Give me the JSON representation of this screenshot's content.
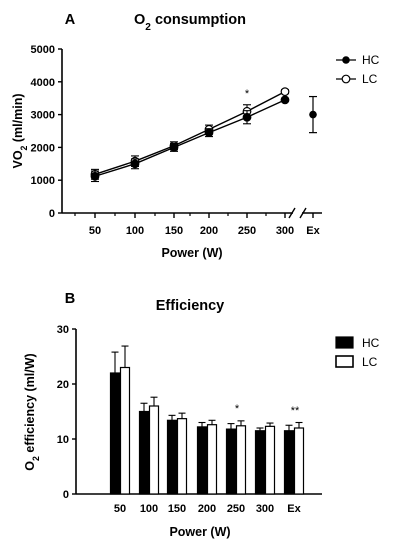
{
  "chart_data": [
    {
      "panel": "A",
      "type": "line",
      "title": "O₂ consumption",
      "title_parts": {
        "pre": "O",
        "sub": "2",
        "post": " consumption"
      },
      "ylabel_parts": {
        "pre": "VO",
        "sub": "2",
        "post": " (ml/min)"
      },
      "xlabel": "Power  (W)",
      "x": [
        "50",
        "100",
        "150",
        "200",
        "250",
        "300"
      ],
      "extra_category": "Ex",
      "ylim": [
        0,
        5000
      ],
      "yticks": [
        "0",
        "1000",
        "2000",
        "3000",
        "4000",
        "5000"
      ],
      "series": [
        {
          "name": "HC",
          "marker": "filled-circle",
          "values": [
            1120,
            1500,
            2000,
            2450,
            2920,
            3450
          ],
          "errors": [
            160,
            150,
            120,
            120,
            200,
            40
          ]
        },
        {
          "name": "LC",
          "marker": "open-circle",
          "values": [
            1180,
            1580,
            2050,
            2550,
            3100,
            3700
          ],
          "errors": [
            150,
            160,
            120,
            130,
            200,
            60
          ]
        }
      ],
      "ex": {
        "value": 3000,
        "lower": 2450,
        "upper": 3550
      },
      "annotations": [
        {
          "category": "250",
          "text": "*"
        }
      ],
      "legend": "right"
    },
    {
      "panel": "B",
      "type": "bar",
      "title": "Efficiency",
      "ylabel_parts": {
        "pre": "O",
        "sub": "2",
        "post": " efficiency  (ml/W)"
      },
      "xlabel": "Power  (W)",
      "categories": [
        "50",
        "100",
        "150",
        "200",
        "250",
        "300",
        "Ex"
      ],
      "ylim": [
        0,
        30
      ],
      "yticks": [
        "0",
        "10",
        "20",
        "30"
      ],
      "series": [
        {
          "name": "HC",
          "fill": "#000000",
          "values": [
            22.0,
            15.0,
            13.4,
            12.2,
            11.8,
            11.5,
            11.5
          ],
          "errors": [
            3.8,
            1.5,
            0.9,
            0.8,
            1.0,
            0.5,
            1.0
          ]
        },
        {
          "name": "LC",
          "fill": "#ffffff",
          "values": [
            23.0,
            16.0,
            13.7,
            12.6,
            12.4,
            12.3,
            12.0
          ],
          "errors": [
            3.9,
            1.6,
            1.0,
            0.8,
            0.9,
            0.6,
            1.0
          ]
        }
      ],
      "annotations": [
        {
          "category": "250",
          "text": "*"
        },
        {
          "category": "Ex",
          "text": "**"
        }
      ],
      "legend": "right"
    }
  ]
}
